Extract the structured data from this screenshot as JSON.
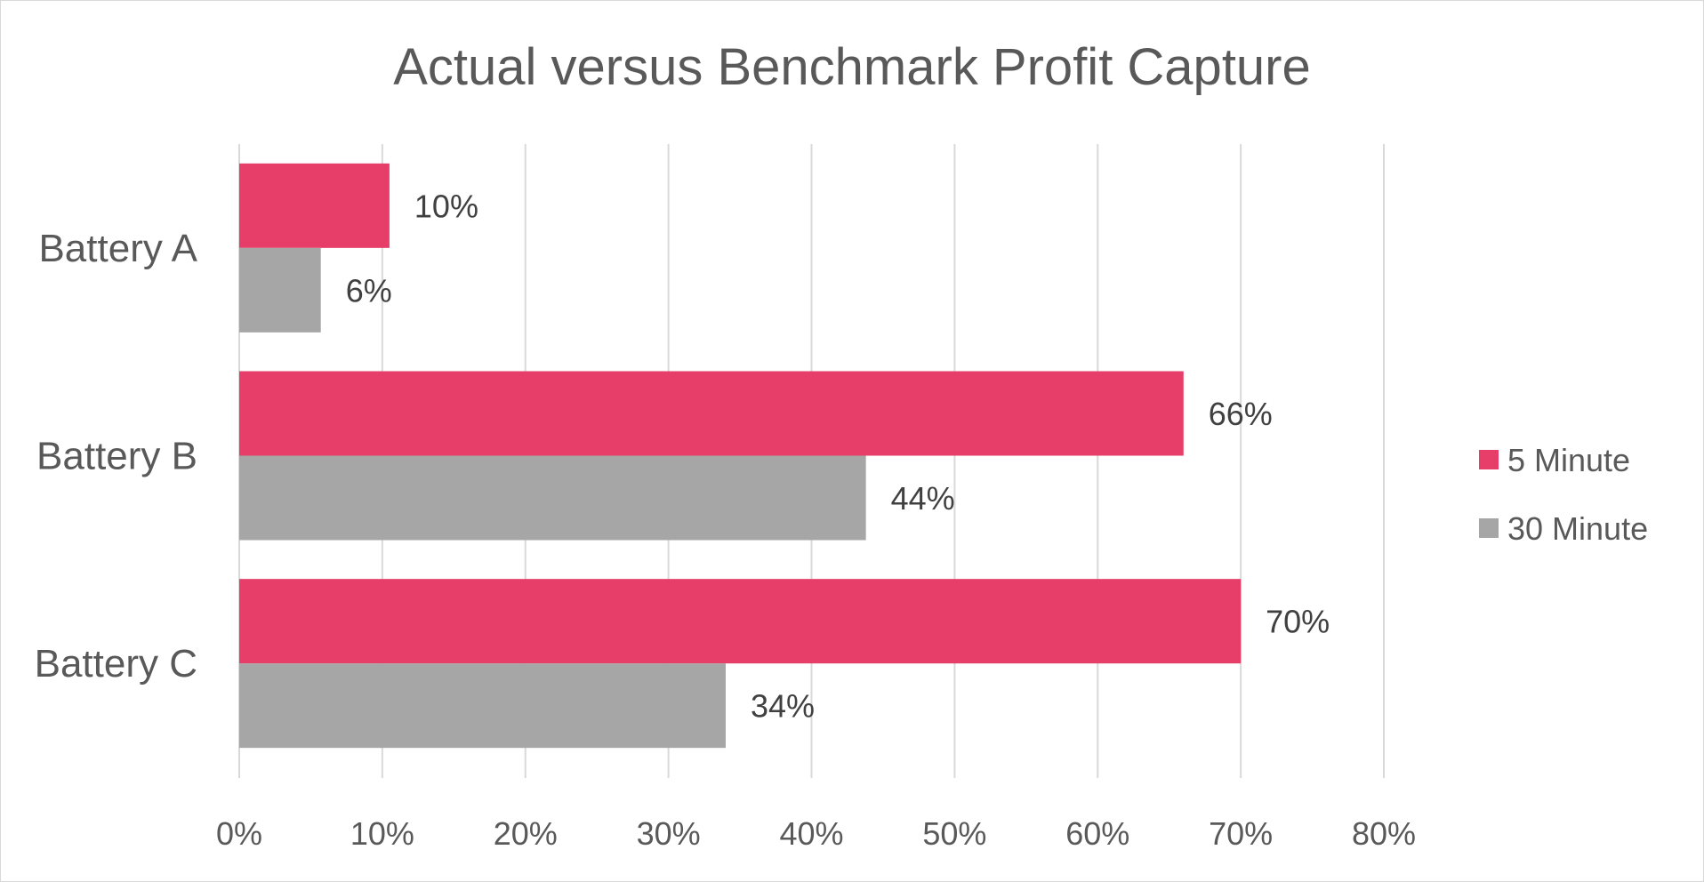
{
  "chart_data": {
    "type": "bar",
    "orientation": "horizontal",
    "title": "Actual versus Benchmark Profit Capture",
    "categories": [
      "Battery A",
      "Battery B",
      "Battery C"
    ],
    "series": [
      {
        "name": "5 Minute",
        "color": "#e63e68",
        "values": [
          10.5,
          66,
          70
        ],
        "labels": [
          "10%",
          "66%",
          "70%"
        ]
      },
      {
        "name": "30 Minute",
        "color": "#a6a6a6",
        "values": [
          5.7,
          43.8,
          34
        ],
        "labels": [
          "6%",
          "44%",
          "34%"
        ]
      }
    ],
    "xlabel": "",
    "ylabel": "",
    "xlim": [
      0,
      80
    ],
    "xticks": [
      0,
      10,
      20,
      30,
      40,
      50,
      60,
      70,
      80
    ],
    "xtick_labels": [
      "0%",
      "10%",
      "20%",
      "30%",
      "40%",
      "50%",
      "60%",
      "70%",
      "80%"
    ],
    "grid": true,
    "legend": "right"
  }
}
